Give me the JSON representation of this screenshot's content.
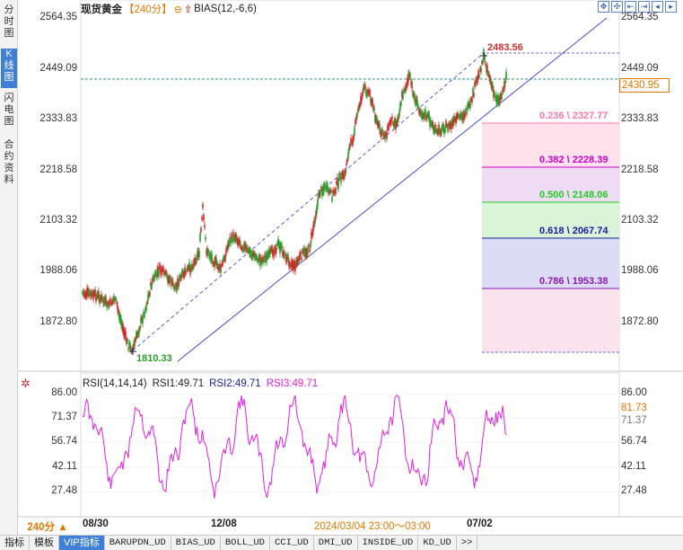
{
  "left_tabs": [
    {
      "label": "分时图",
      "active": false
    },
    {
      "label": "K线图",
      "active": true
    },
    {
      "label": "闪电图",
      "active": false
    },
    {
      "label": "合约资料",
      "active": false
    }
  ],
  "header": {
    "title": "现货黄金",
    "period": "【240分】",
    "indicator": "BIAS(12,-6,6)"
  },
  "toolbar_icons": [
    "zoom-in-icon",
    "zoom-out-icon",
    "move-left-icon",
    "move-right-icon",
    "fit-left-icon",
    "fit-right-icon"
  ],
  "price_axis": [
    "2564.35",
    "2449.09",
    "2333.83",
    "2218.58",
    "2103.32",
    "1988.06",
    "1872.80"
  ],
  "current_price": "2430.95",
  "high_label": "2483.56",
  "low_label": "1810.33",
  "fibonacci": [
    {
      "label": "0.236 \\ 2327.77",
      "color": "#ff7aa0"
    },
    {
      "label": "0.382 \\ 2228.39",
      "color": "#cc00cc"
    },
    {
      "label": "0.500 \\ 2148.06",
      "color": "#22cc22"
    },
    {
      "label": "0.618 \\ 2067.74",
      "color": "#1a1aa0"
    },
    {
      "label": "0.786 \\ 1953.38",
      "color": "#8a1ab0"
    }
  ],
  "rsi": {
    "title": "RSI(14,14,14)",
    "rsi1": "RSI1:49.71",
    "rsi2": "RSI2:49.71",
    "rsi3": "RSI3:49.71",
    "axis": [
      "86.00",
      "71.37",
      "56.74",
      "42.11",
      "27.48"
    ],
    "current": "81.73"
  },
  "x_axis": [
    "08/30",
    "12/08",
    "07/02"
  ],
  "cursor_time": "2024/03/04 23:00～03:00",
  "period_button": "240分 ▲",
  "bottom_tabs": [
    {
      "label": "指标",
      "active": false,
      "mono": false
    },
    {
      "label": "模板",
      "active": false,
      "mono": false
    },
    {
      "label": "VIP指标",
      "active": true,
      "mono": false
    },
    {
      "label": "BARUPDN_UD",
      "active": false,
      "mono": true
    },
    {
      "label": "BIAS_UD",
      "active": false,
      "mono": true
    },
    {
      "label": "BOLL_UD",
      "active": false,
      "mono": true
    },
    {
      "label": "CCI_UD",
      "active": false,
      "mono": true
    },
    {
      "label": "DMI_UD",
      "active": false,
      "mono": true
    },
    {
      "label": "INSIDE_UD",
      "active": false,
      "mono": true
    },
    {
      "label": "KD_UD",
      "active": false,
      "mono": true
    },
    {
      "label": ">>",
      "active": false,
      "mono": true
    }
  ]
}
